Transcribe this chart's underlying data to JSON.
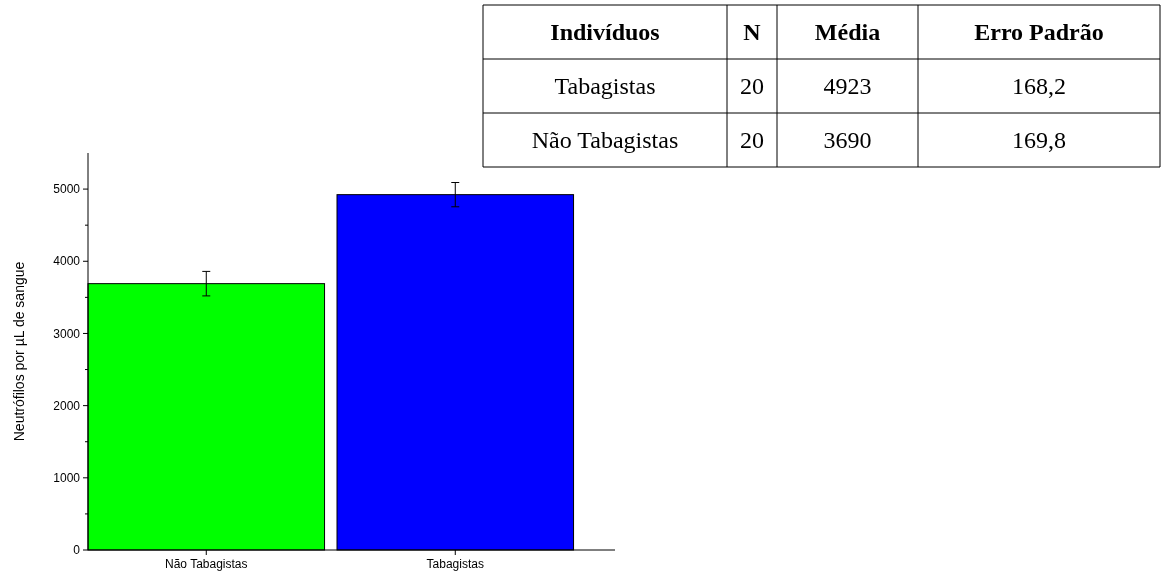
{
  "chart_data": [
    {
      "type": "bar",
      "ylabel": "Neutrófilos por µL de sangue",
      "categories": [
        "Não Tabagistas",
        "Tabagistas"
      ],
      "values": [
        3690,
        4923
      ],
      "errors": [
        169.8,
        168.2
      ],
      "colors": [
        "#00ff00",
        "#0000ff"
      ],
      "ylim": [
        0,
        5500
      ],
      "yticks": [
        0,
        {
          "value": 500,
          "label": null
        },
        1000,
        {
          "value": 1500,
          "label": null
        },
        2000,
        {
          "value": 2500,
          "label": null
        },
        3000,
        {
          "value": 3500,
          "label": null
        },
        4000,
        {
          "value": 4500,
          "label": null
        },
        5000
      ]
    },
    {
      "type": "other",
      "annotations": [
        "Indivíduos",
        "N",
        "Média",
        "Erro Padrão",
        "Tabagistas",
        "20",
        "4923",
        "168,2",
        "Não Tabagistas",
        "20",
        "3690",
        "169,8"
      ]
    }
  ]
}
